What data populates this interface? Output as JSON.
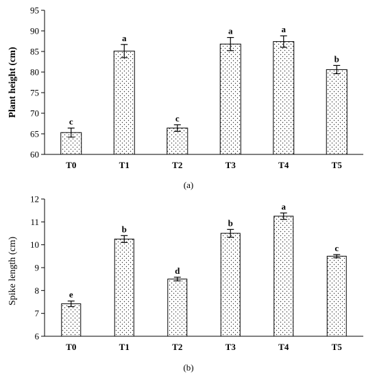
{
  "chart_data": [
    {
      "type": "bar",
      "panel_label": "(a)",
      "title": "",
      "xlabel": "",
      "ylabel": "Plant height (cm)",
      "ylim": [
        60,
        95
      ],
      "yticks": [
        60,
        65,
        70,
        75,
        80,
        85,
        90,
        95
      ],
      "categories": [
        "T0",
        "T1",
        "T2",
        "T3",
        "T4",
        "T5"
      ],
      "values": [
        65.3,
        85.1,
        66.4,
        86.8,
        87.4,
        80.6
      ],
      "errors": [
        1.1,
        1.6,
        0.8,
        1.6,
        1.4,
        1.0
      ],
      "significance": [
        "c",
        "a",
        "c",
        "a",
        "a",
        "b"
      ],
      "grid": false,
      "legend": "none",
      "bar_fill": "dotted",
      "bold_axis_title": true
    },
    {
      "type": "bar",
      "panel_label": "(b)",
      "title": "",
      "xlabel": "",
      "ylabel": "Spike length (cm)",
      "ylim": [
        6,
        12
      ],
      "yticks": [
        6,
        7,
        8,
        9,
        10,
        11,
        12
      ],
      "categories": [
        "T0",
        "T1",
        "T2",
        "T3",
        "T4",
        "T5"
      ],
      "values": [
        7.42,
        10.25,
        8.5,
        10.5,
        11.25,
        9.5
      ],
      "errors": [
        0.12,
        0.15,
        0.08,
        0.17,
        0.14,
        0.07
      ],
      "significance": [
        "e",
        "b",
        "d",
        "b",
        "a",
        "c"
      ],
      "grid": false,
      "legend": "none",
      "bar_fill": "dotted",
      "bold_axis_title": false
    }
  ]
}
